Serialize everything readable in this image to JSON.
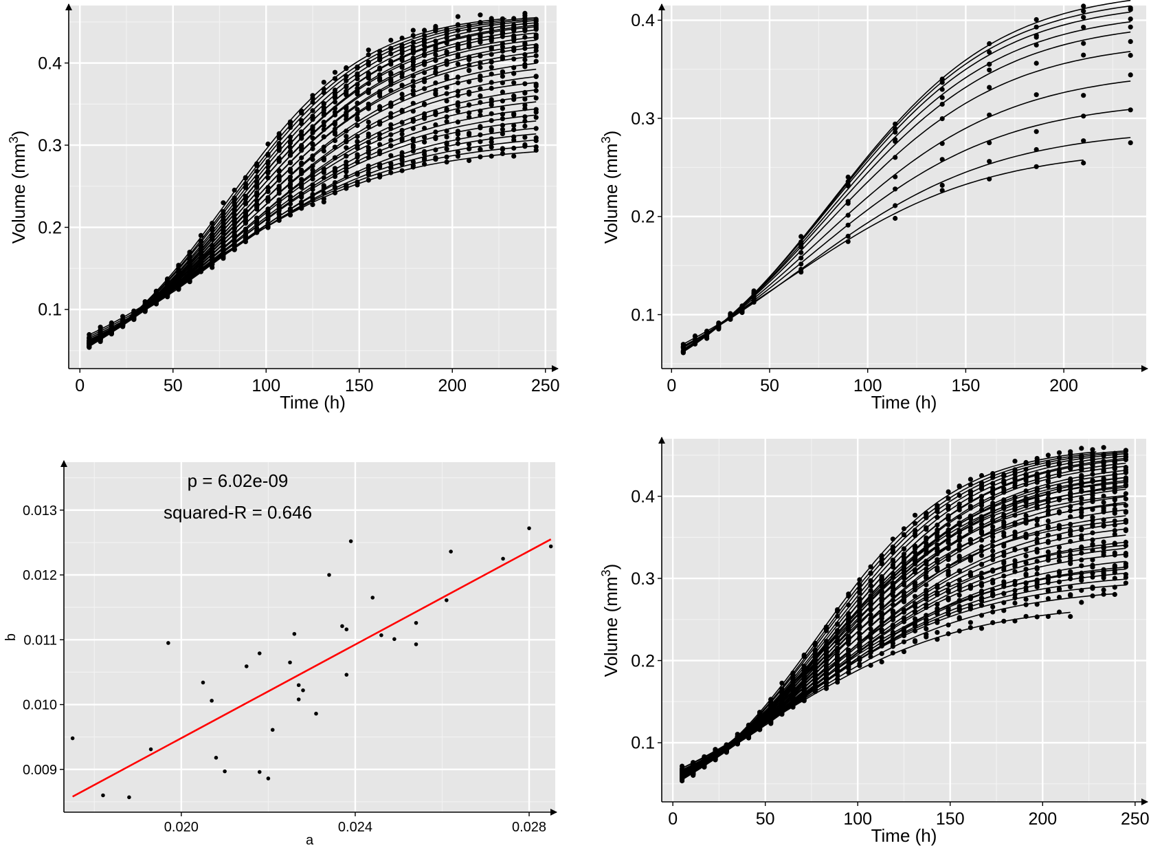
{
  "chart_data": [
    {
      "id": "panel-a",
      "type": "scatter",
      "overlay": "growth-curves",
      "xlabel": "Time (h)",
      "ylabel_main": "Volume (mm",
      "ylabel_sup": "3",
      "ylabel_end": ")",
      "xlim": [
        -6,
        256
      ],
      "ylim": [
        0.028,
        0.47
      ],
      "xticks": [
        0,
        50,
        100,
        150,
        200,
        250
      ],
      "xtick_labels": [
        "0",
        "50",
        "100",
        "150",
        "200",
        "250"
      ],
      "yticks": [
        0.1,
        0.2,
        0.3,
        0.4
      ],
      "ytick_labels": [
        "0.1",
        "0.2",
        "0.3",
        "0.4"
      ],
      "times": [
        5,
        11,
        17,
        23,
        29,
        35,
        41,
        47,
        53,
        59,
        65,
        71,
        77,
        83,
        89,
        95,
        101,
        107,
        113,
        119,
        125,
        131,
        137,
        143,
        149,
        155,
        161,
        167,
        173,
        179,
        185,
        191,
        197,
        203,
        209,
        215,
        221,
        227,
        233,
        239,
        245
      ],
      "t_end": [
        245,
        245,
        245,
        245,
        245,
        245,
        245,
        245,
        245,
        245,
        245,
        245,
        245,
        245,
        245,
        245,
        245,
        245,
        245,
        245,
        245,
        245,
        245,
        245,
        245,
        245,
        245,
        230,
        245,
        245
      ],
      "curves": [
        {
          "A": 0.3,
          "k": 0.02,
          "x": 0.064
        },
        {
          "A": 0.308,
          "k": 0.02,
          "x": 0.062
        },
        {
          "A": 0.316,
          "k": 0.02,
          "x": 0.06
        },
        {
          "A": 0.324,
          "k": 0.02,
          "x": 0.06
        },
        {
          "A": 0.332,
          "k": 0.02,
          "x": 0.058
        },
        {
          "A": 0.34,
          "k": 0.0205,
          "x": 0.058
        },
        {
          "A": 0.348,
          "k": 0.0205,
          "x": 0.057
        },
        {
          "A": 0.356,
          "k": 0.0205,
          "x": 0.057
        },
        {
          "A": 0.364,
          "k": 0.021,
          "x": 0.056
        },
        {
          "A": 0.372,
          "k": 0.021,
          "x": 0.056
        },
        {
          "A": 0.38,
          "k": 0.021,
          "x": 0.055
        },
        {
          "A": 0.388,
          "k": 0.0215,
          "x": 0.055
        },
        {
          "A": 0.396,
          "k": 0.0215,
          "x": 0.054
        },
        {
          "A": 0.404,
          "k": 0.022,
          "x": 0.054
        },
        {
          "A": 0.412,
          "k": 0.022,
          "x": 0.053
        },
        {
          "A": 0.42,
          "k": 0.0225,
          "x": 0.053
        },
        {
          "A": 0.425,
          "k": 0.0225,
          "x": 0.052
        },
        {
          "A": 0.43,
          "k": 0.023,
          "x": 0.052
        },
        {
          "A": 0.434,
          "k": 0.023,
          "x": 0.0515
        },
        {
          "A": 0.438,
          "k": 0.0235,
          "x": 0.0515
        },
        {
          "A": 0.442,
          "k": 0.0235,
          "x": 0.051
        },
        {
          "A": 0.446,
          "k": 0.024,
          "x": 0.051
        },
        {
          "A": 0.45,
          "k": 0.024,
          "x": 0.0505
        },
        {
          "A": 0.453,
          "k": 0.0245,
          "x": 0.0505
        },
        {
          "A": 0.455,
          "k": 0.0245,
          "x": 0.05
        },
        {
          "A": 0.457,
          "k": 0.025,
          "x": 0.05
        },
        {
          "A": 0.459,
          "k": 0.0255,
          "x": 0.0495
        },
        {
          "A": 0.462,
          "k": 0.027,
          "x": 0.049
        },
        {
          "A": 0.46,
          "k": 0.026,
          "x": 0.0495
        },
        {
          "A": 0.461,
          "k": 0.0265,
          "x": 0.049
        }
      ]
    },
    {
      "id": "panel-b",
      "type": "scatter",
      "overlay": "growth-curves",
      "xlabel": "Time (h)",
      "ylabel_main": "Volume (mm",
      "ylabel_sup": "3",
      "ylabel_end": ")",
      "xlim": [
        -5,
        242
      ],
      "ylim": [
        0.045,
        0.415
      ],
      "xticks": [
        0,
        50,
        100,
        150,
        200
      ],
      "xtick_labels": [
        "0",
        "50",
        "100",
        "150",
        "200"
      ],
      "yticks": [
        0.1,
        0.2,
        0.3,
        0.4
      ],
      "ytick_labels": [
        "0.1",
        "0.2",
        "0.3",
        "0.4"
      ],
      "times": [
        6,
        12,
        18,
        24,
        30,
        36,
        42,
        66,
        90,
        114,
        138,
        162,
        186,
        210,
        234
      ],
      "t_end": [
        210,
        234,
        234,
        234,
        234,
        234,
        234,
        234,
        234,
        234
      ],
      "curves": [
        {
          "A": 0.27,
          "k": 0.02,
          "x": 0.064
        },
        {
          "A": 0.29,
          "k": 0.02,
          "x": 0.062
        },
        {
          "A": 0.32,
          "k": 0.0205,
          "x": 0.061
        },
        {
          "A": 0.35,
          "k": 0.021,
          "x": 0.06
        },
        {
          "A": 0.38,
          "k": 0.022,
          "x": 0.058
        },
        {
          "A": 0.4,
          "k": 0.0225,
          "x": 0.057
        },
        {
          "A": 0.41,
          "k": 0.023,
          "x": 0.056
        },
        {
          "A": 0.42,
          "k": 0.0232,
          "x": 0.056
        },
        {
          "A": 0.426,
          "k": 0.0235,
          "x": 0.055
        },
        {
          "A": 0.432,
          "k": 0.0235,
          "x": 0.055
        }
      ]
    },
    {
      "id": "panel-c",
      "type": "scatter",
      "overlay": "regression-line",
      "xlabel": "a",
      "ylabel": "b",
      "xlim": [
        0.0173,
        0.0286
      ],
      "ylim": [
        0.00834,
        0.01374
      ],
      "xticks": [
        0.02,
        0.024,
        0.028
      ],
      "xtick_labels": [
        "0.020",
        "0.024",
        "0.028"
      ],
      "yticks": [
        0.009,
        0.01,
        0.011,
        0.012,
        0.013
      ],
      "ytick_labels": [
        "0.009",
        "0.010",
        "0.011",
        "0.012",
        "0.013"
      ],
      "annotation_p": "p =  6.02e-09",
      "annotation_r2": "squared-R =  0.646",
      "line_color": "#ff0000",
      "fit_line": {
        "x": [
          0.0175,
          0.0285
        ],
        "y": [
          0.00858,
          0.01255
        ]
      },
      "points": [
        {
          "x": 0.0175,
          "y": 0.00948
        },
        {
          "x": 0.0182,
          "y": 0.0086
        },
        {
          "x": 0.0188,
          "y": 0.00857
        },
        {
          "x": 0.0193,
          "y": 0.00931
        },
        {
          "x": 0.0197,
          "y": 0.01095
        },
        {
          "x": 0.0205,
          "y": 0.01034
        },
        {
          "x": 0.0207,
          "y": 0.01006
        },
        {
          "x": 0.0208,
          "y": 0.00918
        },
        {
          "x": 0.021,
          "y": 0.00897
        },
        {
          "x": 0.0215,
          "y": 0.01059
        },
        {
          "x": 0.0218,
          "y": 0.01079
        },
        {
          "x": 0.0218,
          "y": 0.00896
        },
        {
          "x": 0.022,
          "y": 0.00886
        },
        {
          "x": 0.0221,
          "y": 0.00961
        },
        {
          "x": 0.0225,
          "y": 0.01065
        },
        {
          "x": 0.0226,
          "y": 0.01109
        },
        {
          "x": 0.0227,
          "y": 0.0103
        },
        {
          "x": 0.0227,
          "y": 0.01008
        },
        {
          "x": 0.0228,
          "y": 0.01022
        },
        {
          "x": 0.0231,
          "y": 0.00986
        },
        {
          "x": 0.0234,
          "y": 0.012
        },
        {
          "x": 0.0237,
          "y": 0.01121
        },
        {
          "x": 0.0238,
          "y": 0.01116
        },
        {
          "x": 0.0238,
          "y": 0.01046
        },
        {
          "x": 0.0239,
          "y": 0.01252
        },
        {
          "x": 0.0244,
          "y": 0.01165
        },
        {
          "x": 0.0246,
          "y": 0.01107
        },
        {
          "x": 0.0249,
          "y": 0.01101
        },
        {
          "x": 0.0254,
          "y": 0.01126
        },
        {
          "x": 0.0254,
          "y": 0.01093
        },
        {
          "x": 0.0261,
          "y": 0.01161
        },
        {
          "x": 0.0262,
          "y": 0.01236
        },
        {
          "x": 0.0274,
          "y": 0.01225
        },
        {
          "x": 0.028,
          "y": 0.01272
        },
        {
          "x": 0.0285,
          "y": 0.01244
        }
      ]
    },
    {
      "id": "panel-d",
      "type": "scatter",
      "overlay": "growth-curves",
      "xlabel": "Time (h)",
      "ylabel_main": "Volume (mm",
      "ylabel_sup": "3",
      "ylabel_end": ")",
      "xlim": [
        -6,
        256
      ],
      "ylim": [
        0.028,
        0.47
      ],
      "xticks": [
        0,
        50,
        100,
        150,
        200,
        250
      ],
      "xtick_labels": [
        "0",
        "50",
        "100",
        "150",
        "200",
        "250"
      ],
      "yticks": [
        0.1,
        0.2,
        0.3,
        0.4
      ],
      "ytick_labels": [
        "0.1",
        "0.2",
        "0.3",
        "0.4"
      ],
      "times": [
        5,
        11,
        17,
        23,
        29,
        35,
        41,
        47,
        53,
        59,
        65,
        71,
        77,
        83,
        89,
        95,
        101,
        107,
        113,
        119,
        125,
        131,
        137,
        143,
        149,
        155,
        161,
        167,
        173,
        179,
        185,
        191,
        197,
        203,
        209,
        215,
        221,
        227,
        233,
        239,
        245
      ],
      "t_end": [
        215,
        239,
        245,
        245,
        245,
        245,
        245,
        245,
        245,
        245,
        245,
        245,
        245,
        245,
        245,
        245,
        245,
        245,
        245,
        245,
        245,
        245,
        245,
        245,
        245,
        245,
        245,
        245,
        245,
        245,
        245,
        245,
        245,
        245,
        245,
        245,
        245,
        230,
        245,
        245
      ],
      "curves": [
        {
          "A": 0.27,
          "k": 0.02,
          "x": 0.064
        },
        {
          "A": 0.29,
          "k": 0.02,
          "x": 0.062
        },
        {
          "A": 0.3,
          "k": 0.02,
          "x": 0.064
        },
        {
          "A": 0.308,
          "k": 0.02,
          "x": 0.062
        },
        {
          "A": 0.316,
          "k": 0.02,
          "x": 0.06
        },
        {
          "A": 0.32,
          "k": 0.0205,
          "x": 0.061
        },
        {
          "A": 0.324,
          "k": 0.02,
          "x": 0.06
        },
        {
          "A": 0.332,
          "k": 0.02,
          "x": 0.058
        },
        {
          "A": 0.34,
          "k": 0.0205,
          "x": 0.058
        },
        {
          "A": 0.348,
          "k": 0.0205,
          "x": 0.057
        },
        {
          "A": 0.35,
          "k": 0.021,
          "x": 0.06
        },
        {
          "A": 0.356,
          "k": 0.0205,
          "x": 0.057
        },
        {
          "A": 0.364,
          "k": 0.021,
          "x": 0.056
        },
        {
          "A": 0.372,
          "k": 0.021,
          "x": 0.056
        },
        {
          "A": 0.38,
          "k": 0.021,
          "x": 0.055
        },
        {
          "A": 0.38,
          "k": 0.022,
          "x": 0.058
        },
        {
          "A": 0.388,
          "k": 0.0215,
          "x": 0.055
        },
        {
          "A": 0.396,
          "k": 0.0215,
          "x": 0.054
        },
        {
          "A": 0.4,
          "k": 0.0225,
          "x": 0.057
        },
        {
          "A": 0.404,
          "k": 0.022,
          "x": 0.054
        },
        {
          "A": 0.41,
          "k": 0.023,
          "x": 0.056
        },
        {
          "A": 0.412,
          "k": 0.022,
          "x": 0.053
        },
        {
          "A": 0.42,
          "k": 0.0225,
          "x": 0.053
        },
        {
          "A": 0.42,
          "k": 0.0232,
          "x": 0.056
        },
        {
          "A": 0.425,
          "k": 0.0225,
          "x": 0.052
        },
        {
          "A": 0.426,
          "k": 0.0235,
          "x": 0.055
        },
        {
          "A": 0.43,
          "k": 0.023,
          "x": 0.052
        },
        {
          "A": 0.432,
          "k": 0.0235,
          "x": 0.055
        },
        {
          "A": 0.434,
          "k": 0.023,
          "x": 0.0515
        },
        {
          "A": 0.438,
          "k": 0.0235,
          "x": 0.0515
        },
        {
          "A": 0.442,
          "k": 0.0235,
          "x": 0.051
        },
        {
          "A": 0.446,
          "k": 0.024,
          "x": 0.051
        },
        {
          "A": 0.45,
          "k": 0.024,
          "x": 0.0505
        },
        {
          "A": 0.453,
          "k": 0.0245,
          "x": 0.0505
        },
        {
          "A": 0.455,
          "k": 0.0245,
          "x": 0.05
        },
        {
          "A": 0.457,
          "k": 0.025,
          "x": 0.05
        },
        {
          "A": 0.459,
          "k": 0.0255,
          "x": 0.0495
        },
        {
          "A": 0.462,
          "k": 0.027,
          "x": 0.049
        },
        {
          "A": 0.46,
          "k": 0.026,
          "x": 0.0495
        },
        {
          "A": 0.461,
          "k": 0.0265,
          "x": 0.049
        }
      ]
    }
  ]
}
